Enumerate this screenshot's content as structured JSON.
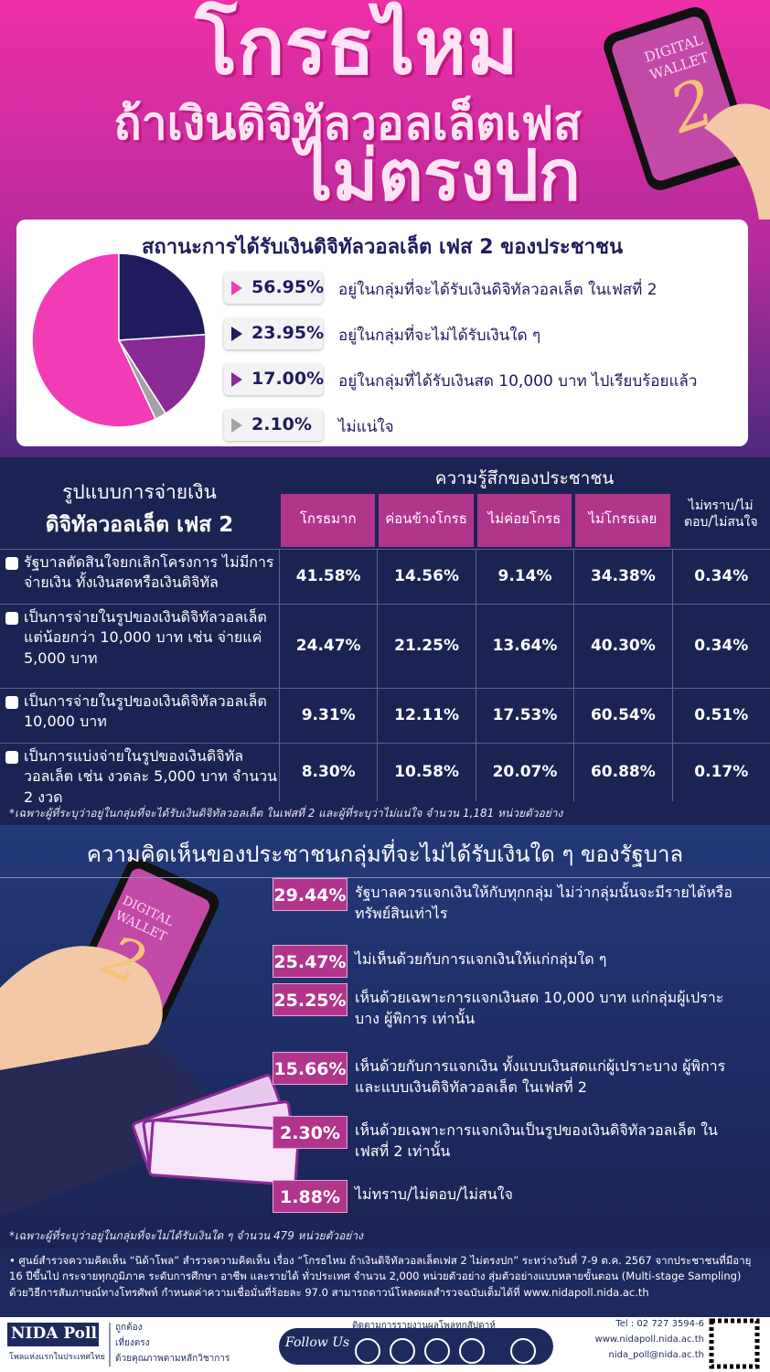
{
  "header": {
    "title_lines": [
      "โกรธไหม",
      "ถ้าเงินดิจิทัลวอลเล็ตเฟส",
      "ไม่ตรงปก"
    ],
    "phone_text": [
      "DIGITAL",
      "WALLET",
      "2"
    ]
  },
  "chart_data": {
    "type": "pie",
    "title": "สถานะการได้รับเงินดิจิทัลวอลเล็ต เฟส 2 ของประชาชน",
    "categories": [
      "อยู่ในกลุ่มที่จะได้รับเงินดิจิทัลวอลเล็ต ในเฟสที่ 2",
      "อยู่ในกลุ่มที่จะไม่ได้รับเงินใด ๆ",
      "อยู่ในกลุ่มที่ได้รับเงินสด 10,000 บาท ไปเรียบร้อยแล้ว",
      "ไม่แน่ใจ"
    ],
    "values": [
      56.95,
      23.95,
      17.0,
      2.1
    ],
    "value_labels": [
      "56.95%",
      "23.95%",
      "17.00%",
      "2.10%"
    ],
    "colors": [
      "#f23cb6",
      "#1f1b5e",
      "#8a2a95",
      "#a3a3a3"
    ]
  },
  "table": {
    "row_header": [
      "รูปแบบการจ่ายเงิน",
      "ดิจิทัลวอลเล็ต เฟส 2"
    ],
    "group_header": "ความรู้สึกของประชาชน",
    "columns": [
      "โกรธมาก",
      "ค่อนข้างโกรธ",
      "ไม่ค่อยโกรธ",
      "ไม่โกรธเลย",
      "ไม่ทราบ/ไม่ตอบ/ไม่สนใจ"
    ],
    "rows": [
      {
        "label": "รัฐบาลตัดสินใจยกเลิกโครงการ ไม่มีการจ่ายเงิน ทั้งเงินสดหรือเงินดิจิทัล",
        "cells": [
          "41.58%",
          "14.56%",
          "9.14%",
          "34.38%",
          "0.34%"
        ]
      },
      {
        "label": "เป็นการจ่ายในรูปของเงินดิจิทัลวอลเล็ต แต่น้อยกว่า 10,000 บาท เช่น จ่ายแค่ 5,000 บาท",
        "cells": [
          "24.47%",
          "21.25%",
          "13.64%",
          "40.30%",
          "0.34%"
        ]
      },
      {
        "label": "เป็นการจ่ายในรูปของเงินดิจิทัลวอลเล็ต 10,000 บาท",
        "cells": [
          "9.31%",
          "12.11%",
          "17.53%",
          "60.54%",
          "0.51%"
        ]
      },
      {
        "label": "เป็นการแบ่งจ่ายในรูปของเงินดิจิทัลวอลเล็ต เช่น งวดละ 5,000 บาท จำนวน 2 งวด",
        "cells": [
          "8.30%",
          "10.58%",
          "20.07%",
          "60.88%",
          "0.17%"
        ]
      }
    ],
    "note": "*เฉพาะผู้ที่ระบุว่าอยู่ในกลุ่มที่จะได้รับเงินดิจิทัลวอลเล็ต ในเฟสที่ 2 และผู้ที่ระบุว่าไม่แน่ใจ จำนวน 1,181 หน่วยตัวอย่าง"
  },
  "opinions": {
    "title": "ความคิดเห็นของประชาชนกลุ่มที่จะไม่ได้รับเงินใด ๆ ของรัฐบาล",
    "items": [
      {
        "value": "29.44%",
        "text": "รัฐบาลควรแจกเงินให้กับทุกกลุ่ม ไม่ว่ากลุ่มนั้นจะมีรายได้หรือทรัพย์สินเท่าไร"
      },
      {
        "value": "25.47%",
        "text": "ไม่เห็นด้วยกับการแจกเงินให้แก่กลุ่มใด ๆ"
      },
      {
        "value": "25.25%",
        "text": "เห็นด้วยเฉพาะการแจกเงินสด 10,000 บาท แก่กลุ่มผู้เปราะบาง ผู้พิการ เท่านั้น"
      },
      {
        "value": "15.66%",
        "text": "เห็นด้วยกับการแจกเงิน ทั้งแบบเงินสดแก่ผู้เปราะบาง ผู้พิการ และแบบเงินดิจิทัลวอลเล็ต ในเฟสที่ 2"
      },
      {
        "value": "2.30%",
        "text": "เห็นด้วยเฉพาะการแจกเงินเป็นรูปของเงินดิจิทัลวอลเล็ต ในเฟสที่ 2 เท่านั้น"
      },
      {
        "value": "1.88%",
        "text": "ไม่ทราบ/ไม่ตอบ/ไม่สนใจ"
      }
    ],
    "note": "*เฉพาะผู้ที่ระบุว่าอยู่ในกลุ่มที่จะไม่ได้รับเงินใด ๆ จำนวน 479 หน่วยตัวอย่าง"
  },
  "footer": {
    "text": "• ศูนย์สำรวจความคิดเห็น “นิด้าโพล” สำรวจความคิดเห็น เรื่อง “โกรธไหม ถ้าเงินดิจิทัลวอลเล็ตเฟส 2 ไม่ตรงปก” ระหว่างวันที่ 7-9 ต.ค. 2567 จากประชาชนที่มีอายุ 16 ปีขึ้นไป กระจายทุกภูมิภาค ระดับการศึกษา อาชีพ และรายได้ ทั่วประเทศ จำนวน 2,000 หน่วยตัวอย่าง สุ่มตัวอย่างแบบหลายขั้นตอน (Multi-stage Sampling) ด้วยวิธีการสัมภาษณ์ทางโทรศัพท์ กำหนดค่าความเชื่อมั่นที่ร้อยละ 97.0 สามารถดาวน์โหลดผลสำรวจฉบับเต็มได้ที่ www.nidapoll.nida.ac.th",
    "brand": "NIDA Poll",
    "tagline": "โพลแห่งแรกในประเทศไทย",
    "values": [
      "ถูกต้อง",
      "เที่ยงตรง",
      "ด้วยคุณภาพตามหลักวิชาการ"
    ],
    "follow": "Follow Us",
    "follow_note": "ติดตามการรายงานผลโพลทุกสัปดาห์",
    "contacts": [
      "Tel : 02 727 3594-6",
      "www.nidapoll.nida.ac.th",
      "nida_poll@nida.ac.th"
    ]
  }
}
